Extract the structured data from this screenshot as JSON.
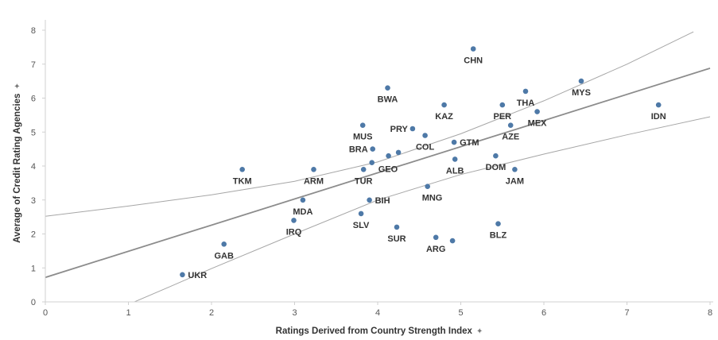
{
  "chart_data": {
    "type": "scatter",
    "xlabel": "Ratings Derived from Country Strength Index",
    "ylabel": "Average of Credit Rating Agencies",
    "axis_title_mark": "✦",
    "xlim": [
      0,
      8
    ],
    "ylim": [
      0,
      8
    ],
    "x_ticks": [
      "0",
      "1",
      "2",
      "3",
      "4",
      "5",
      "6",
      "7",
      "8"
    ],
    "y_ticks": [
      "0",
      "1",
      "2",
      "3",
      "4",
      "5",
      "6",
      "7",
      "8"
    ],
    "grid": false,
    "colors": {
      "point": "#4e79a7",
      "trend": "#8c8c8c",
      "band": "#a6a6a6",
      "axis": "#d0d0d0"
    },
    "trend_line": {
      "intercept": 0.72,
      "slope": 0.77
    },
    "confidence_band": {
      "upper": {
        "x": [
          0,
          1,
          2,
          3,
          4,
          5,
          6,
          7,
          7.8
        ],
        "y": [
          2.52,
          2.82,
          3.15,
          3.55,
          4.12,
          4.95,
          5.92,
          7.0,
          7.95
        ]
      },
      "lower": {
        "x": [
          0.9,
          1.5,
          2,
          3,
          4,
          5,
          6,
          7,
          8
        ],
        "y": [
          -0.18,
          0.45,
          0.98,
          2.0,
          3.0,
          3.75,
          4.35,
          4.92,
          5.45
        ]
      }
    },
    "points": [
      {
        "label": "CHN",
        "x": 5.15,
        "y": 7.45
      },
      {
        "label": "MYS",
        "x": 6.45,
        "y": 6.5
      },
      {
        "label": "BWA",
        "x": 4.12,
        "y": 6.3
      },
      {
        "label": "THA",
        "x": 5.78,
        "y": 6.2
      },
      {
        "label": "KAZ",
        "x": 4.8,
        "y": 5.8
      },
      {
        "label": "PER",
        "x": 5.5,
        "y": 5.8
      },
      {
        "label": "IDN",
        "x": 7.38,
        "y": 5.8
      },
      {
        "label": "MEX",
        "x": 5.92,
        "y": 5.6
      },
      {
        "label": "AZE",
        "x": 5.6,
        "y": 5.2
      },
      {
        "label": "MUS",
        "x": 3.82,
        "y": 5.2
      },
      {
        "label": "PRY",
        "x": 4.42,
        "y": 5.1
      },
      {
        "label": "COL",
        "x": 4.57,
        "y": 4.9
      },
      {
        "label": "GTM",
        "x": 4.92,
        "y": 4.7
      },
      {
        "label": "BRA",
        "x": 3.94,
        "y": 4.5
      },
      {
        "label": "",
        "x": 4.13,
        "y": 4.3
      },
      {
        "label": "",
        "x": 4.25,
        "y": 4.4
      },
      {
        "label": "DOM",
        "x": 5.42,
        "y": 4.3
      },
      {
        "label": "GEO",
        "x": 3.93,
        "y": 4.1
      },
      {
        "label": "ALB",
        "x": 4.93,
        "y": 4.2
      },
      {
        "label": "TKM",
        "x": 2.37,
        "y": 3.9
      },
      {
        "label": "ARM",
        "x": 3.23,
        "y": 3.9
      },
      {
        "label": "TUR",
        "x": 3.83,
        "y": 3.9
      },
      {
        "label": "JAM",
        "x": 5.65,
        "y": 3.9
      },
      {
        "label": "MNG",
        "x": 4.6,
        "y": 3.4
      },
      {
        "label": "MDA",
        "x": 3.1,
        "y": 3.0
      },
      {
        "label": "BIH",
        "x": 3.9,
        "y": 3.0
      },
      {
        "label": "SLV",
        "x": 3.8,
        "y": 2.6
      },
      {
        "label": "IRQ",
        "x": 2.99,
        "y": 2.4
      },
      {
        "label": "BLZ",
        "x": 5.45,
        "y": 2.3
      },
      {
        "label": "SUR",
        "x": 4.23,
        "y": 2.2
      },
      {
        "label": "ARG",
        "x": 4.7,
        "y": 1.9
      },
      {
        "label": "",
        "x": 4.9,
        "y": 1.8
      },
      {
        "label": "GAB",
        "x": 2.15,
        "y": 1.7
      },
      {
        "label": "UKR",
        "x": 1.65,
        "y": 0.8
      }
    ]
  }
}
